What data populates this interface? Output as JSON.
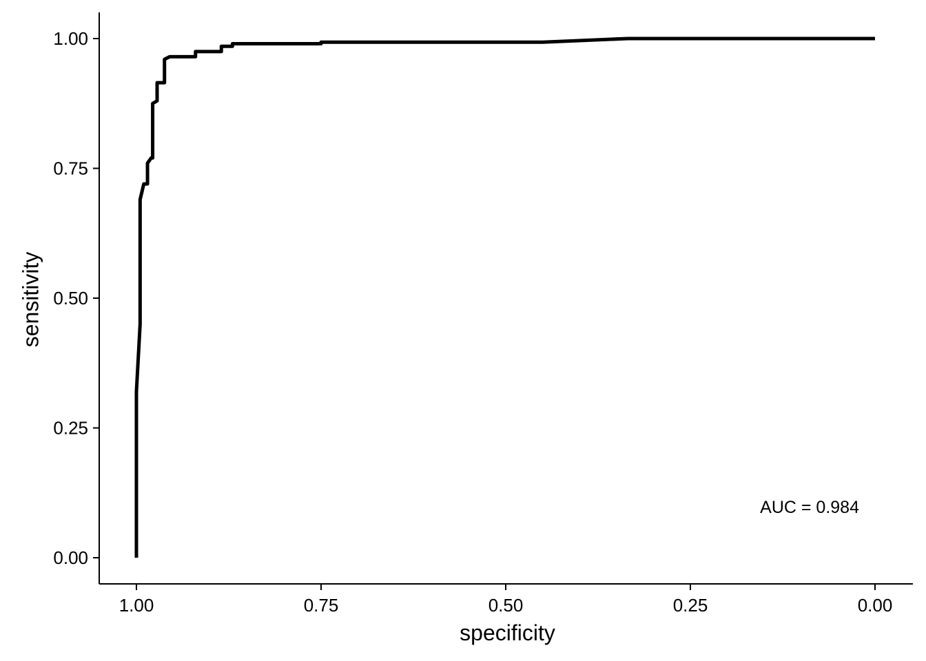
{
  "chart_data": {
    "type": "line",
    "xlabel": "specificity",
    "ylabel": "sensitivity",
    "xlim": [
      1.0,
      0.0
    ],
    "ylim": [
      0.0,
      1.0
    ],
    "x_reversed": true,
    "grid": false,
    "x_ticks": [
      "1.00",
      "0.75",
      "0.50",
      "0.25",
      "0.00"
    ],
    "y_ticks": [
      "0.00",
      "0.25",
      "0.50",
      "0.75",
      "1.00"
    ],
    "annotation": "AUC = 0.984",
    "line_color": "#000000",
    "series": [
      {
        "x": [
          1.0,
          1.0,
          0.995,
          0.995,
          0.99,
          0.985,
          0.985,
          0.98,
          0.978,
          0.978,
          0.972,
          0.972,
          0.962,
          0.962,
          0.955,
          0.955,
          0.92,
          0.92,
          0.885,
          0.885,
          0.87,
          0.87,
          0.75,
          0.75,
          0.45,
          0.335,
          0.0
        ],
        "y": [
          0.0,
          0.32,
          0.45,
          0.69,
          0.72,
          0.72,
          0.76,
          0.77,
          0.77,
          0.875,
          0.88,
          0.915,
          0.915,
          0.96,
          0.965,
          0.965,
          0.965,
          0.975,
          0.975,
          0.985,
          0.985,
          0.99,
          0.99,
          0.993,
          0.993,
          1.0,
          1.0
        ]
      }
    ]
  }
}
